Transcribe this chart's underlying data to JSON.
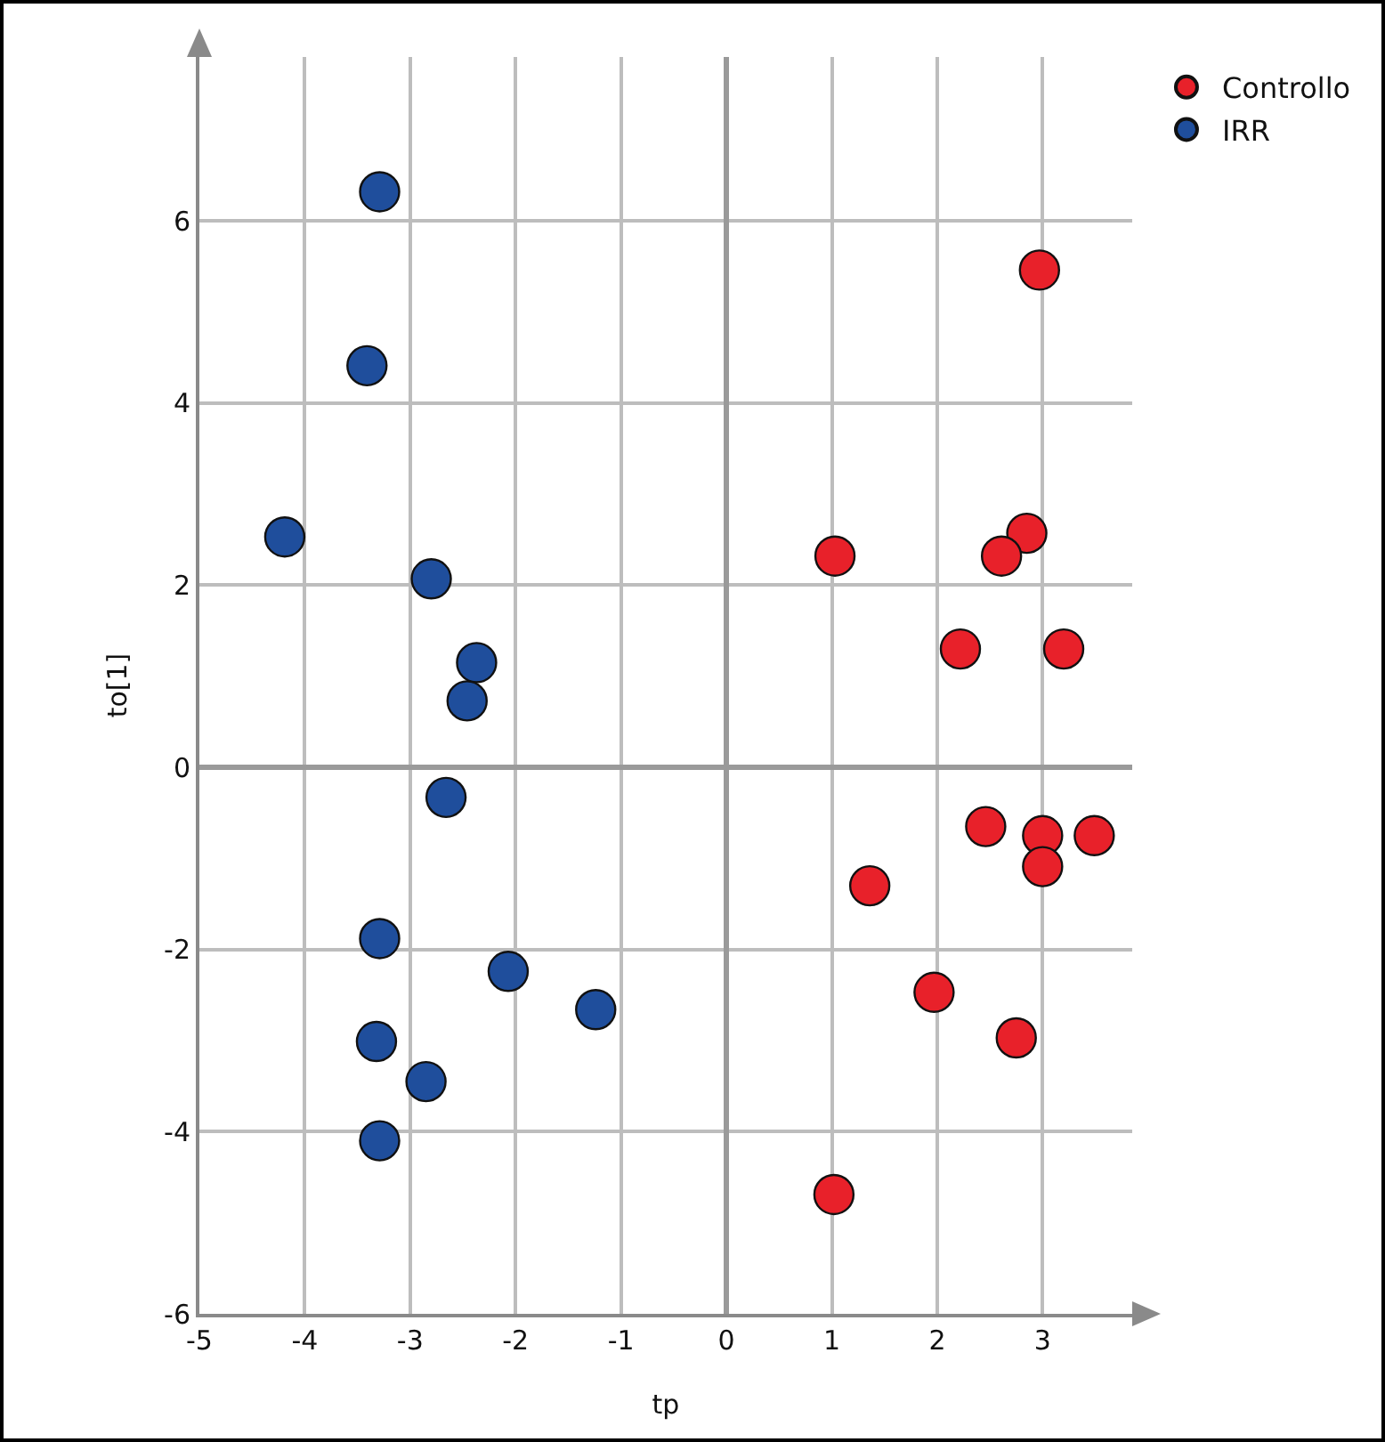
{
  "chart_data": {
    "type": "scatter",
    "xlabel": "tp",
    "ylabel": "to[1]",
    "xlim": [
      -5,
      3.85
    ],
    "ylim": [
      -6,
      7.8
    ],
    "xticks": [
      -5,
      -4,
      -3,
      -2,
      -1,
      0,
      1,
      2,
      3
    ],
    "yticks": [
      -6,
      -4,
      -2,
      0,
      2,
      4,
      6
    ],
    "grid": true,
    "legend": "top right",
    "marker": "circle",
    "series": [
      {
        "name": "Controllo",
        "color": "#e8212a",
        "x": [
          2.97,
          1.03,
          2.85,
          2.61,
          2.22,
          3.2,
          2.46,
          3.0,
          3.49,
          3.0,
          1.36,
          1.97,
          2.75,
          1.02
        ],
        "values": [
          5.46,
          2.32,
          2.57,
          2.32,
          1.3,
          1.3,
          -0.65,
          -0.75,
          -0.75,
          -1.09,
          -1.3,
          -2.47,
          -2.97,
          -4.69
        ]
      },
      {
        "name": "IRR",
        "color": "#1f4e9c",
        "x": [
          -3.29,
          -3.41,
          -4.19,
          -2.8,
          -2.37,
          -2.46,
          -2.66,
          -3.29,
          -2.07,
          -1.24,
          -3.32,
          -2.85,
          -3.29
        ],
        "values": [
          6.32,
          4.41,
          2.53,
          2.07,
          1.15,
          0.73,
          -0.33,
          -1.88,
          -2.24,
          -2.66,
          -3.01,
          -3.45,
          -4.1
        ]
      }
    ]
  }
}
